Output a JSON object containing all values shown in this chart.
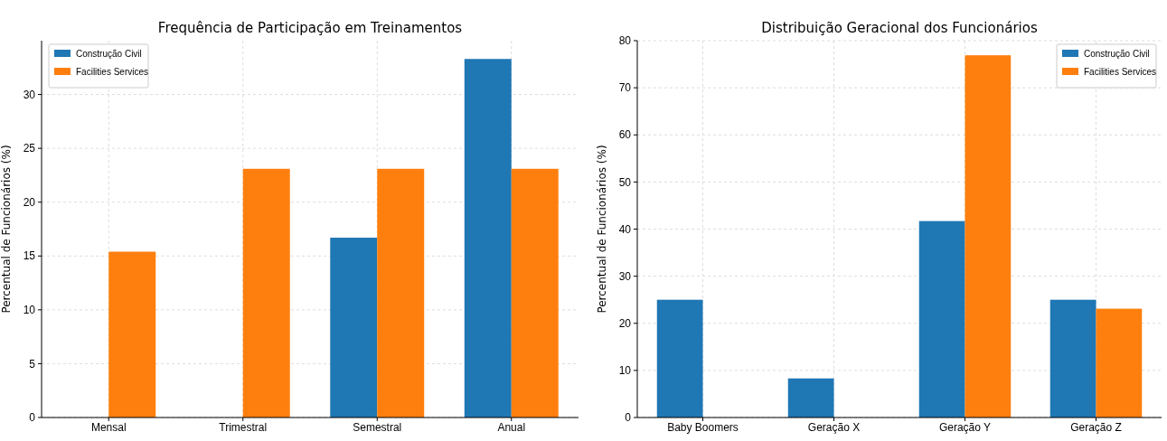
{
  "chart_data": [
    {
      "type": "bar",
      "title": "Frequência de Participação em Treinamentos",
      "ylabel": "Percentual de Funcionários (%)",
      "categories": [
        "Mensal",
        "Trimestral",
        "Semestral",
        "Anual"
      ],
      "series": [
        {
          "name": "Construção Civil",
          "color": "#1f77b4",
          "values": [
            0,
            0,
            16.7,
            33.3
          ]
        },
        {
          "name": "Facilities Services",
          "color": "#ff7f0e",
          "values": [
            15.4,
            23.1,
            23.1,
            23.1
          ]
        }
      ],
      "ylim": [
        0,
        35
      ],
      "yticks": [
        0,
        5,
        10,
        15,
        20,
        25,
        30
      ],
      "grid": true,
      "legend": "top left"
    },
    {
      "type": "bar",
      "title": "Distribuição Geracional dos Funcionários",
      "ylabel": "Percentual de Funcionários (%)",
      "categories": [
        "Baby Boomers",
        "Geração X",
        "Geração Y",
        "Geração Z"
      ],
      "series": [
        {
          "name": "Construção Civil",
          "color": "#1f77b4",
          "values": [
            25,
            8.3,
            41.7,
            25
          ]
        },
        {
          "name": "Facilities Services",
          "color": "#ff7f0e",
          "values": [
            0,
            0,
            76.9,
            23.1
          ]
        }
      ],
      "ylim": [
        0,
        80
      ],
      "yticks": [
        0,
        10,
        20,
        30,
        40,
        50,
        60,
        70,
        80
      ],
      "grid": true,
      "legend": "top right"
    }
  ]
}
